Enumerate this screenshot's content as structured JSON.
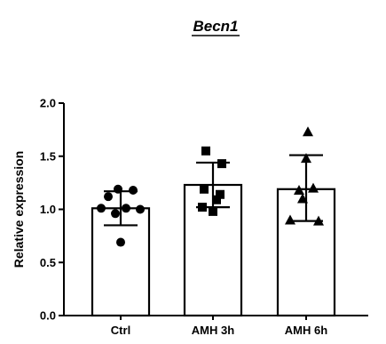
{
  "chart_data": {
    "type": "bar",
    "title": "Becn1",
    "xlabel": "",
    "ylabel": "Relative expression",
    "ylim": [
      0,
      2.0
    ],
    "yticks": [
      0.0,
      0.5,
      1.0,
      1.5,
      2.0
    ],
    "ytick_labels": [
      "0.0",
      "0.5",
      "1.0",
      "1.5",
      "2.0"
    ],
    "categories": [
      "Ctrl",
      "AMH 3h",
      "AMH 6h"
    ],
    "values": [
      1.01,
      1.23,
      1.19
    ],
    "error_low": [
      0.85,
      1.02,
      0.89
    ],
    "error_high": [
      1.17,
      1.44,
      1.51
    ],
    "points": [
      {
        "marker": "circle",
        "values": [
          1.19,
          1.18,
          1.12,
          1.01,
          1.01,
          1.0,
          0.96,
          0.69
        ]
      },
      {
        "marker": "square",
        "values": [
          1.55,
          1.43,
          1.19,
          1.14,
          1.09,
          1.02,
          0.98
        ]
      },
      {
        "marker": "triangle",
        "values": [
          1.73,
          1.48,
          1.2,
          1.18,
          1.1,
          0.9,
          0.89
        ]
      }
    ],
    "grid": false,
    "legend": "none"
  }
}
